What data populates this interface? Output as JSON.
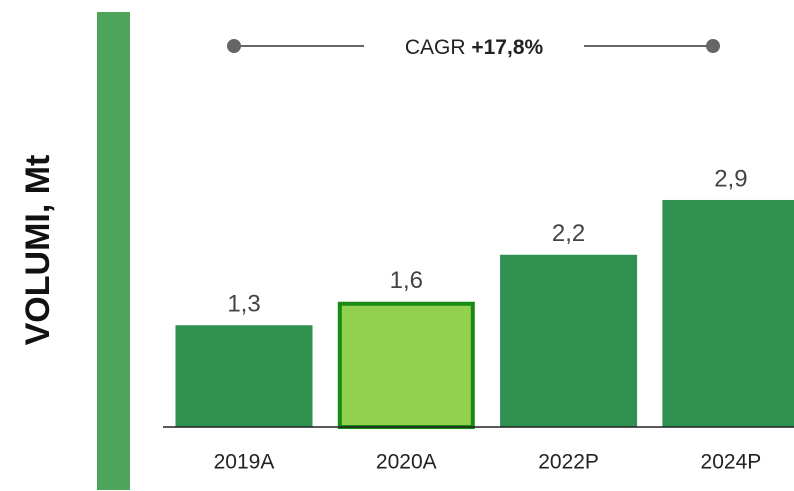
{
  "chart_data": {
    "type": "bar",
    "y_axis_label": "VOLUMI, Mt",
    "categories": [
      "2019A",
      "2020A",
      "2022P",
      "2024P"
    ],
    "values": [
      1.3,
      1.6,
      2.2,
      2.9
    ],
    "value_labels": [
      "1,3",
      "1,6",
      "2,2",
      "2,9"
    ],
    "color": "#2e9150",
    "highlight_category": "2020A",
    "highlight_color": "#92d050",
    "highlight_stroke": "#178a14",
    "ylim": [
      0,
      3.5
    ],
    "annotation": {
      "label": "CAGR",
      "value": "+17,8%"
    }
  }
}
